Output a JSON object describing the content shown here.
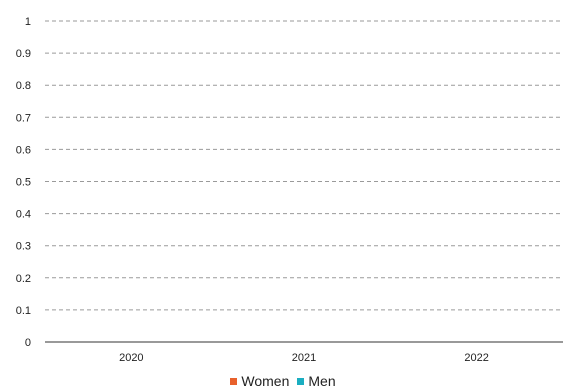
{
  "chart_data": {
    "type": "bar",
    "categories": [
      "2020",
      "2021",
      "2022"
    ],
    "series": [
      {
        "name": "Women",
        "color": "#e8612c",
        "values": [
          0,
          0,
          0
        ]
      },
      {
        "name": "Men",
        "color": "#1aaec1",
        "values": [
          0,
          0,
          0
        ]
      }
    ],
    "y_ticks": [
      "0",
      "0.1",
      "0.2",
      "0.3",
      "0.4",
      "0.5",
      "0.6",
      "0.7",
      "0.8",
      "0.9",
      "1"
    ],
    "ylim": [
      0,
      1
    ],
    "grid": true,
    "legend_position": "bottom"
  }
}
